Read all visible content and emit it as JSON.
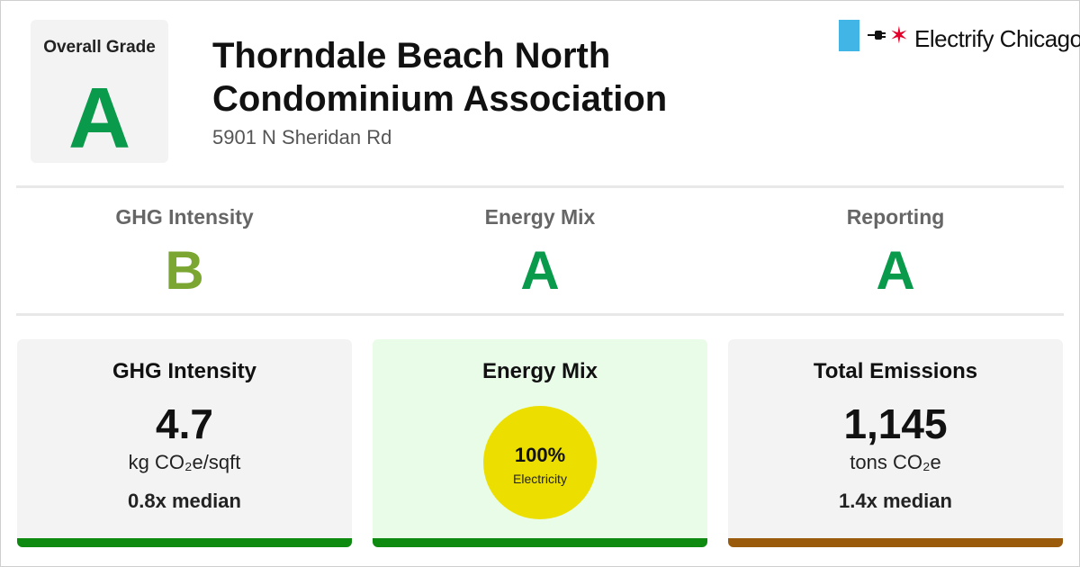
{
  "overall": {
    "label": "Overall Grade",
    "grade": "A",
    "grade_color": "#0a9a4b"
  },
  "building": {
    "name_line1": "Thorndale Beach North",
    "name_line2": "Condominium Association",
    "address": "5901 N Sheridan Rd"
  },
  "brand": {
    "name": "Electrify Chicago",
    "flag_color": "#41b6e6",
    "star_color": "#e4002b",
    "icon": "plug-icon"
  },
  "grades": [
    {
      "label": "GHG Intensity",
      "grade": "B",
      "color": "#7aa631"
    },
    {
      "label": "Energy Mix",
      "grade": "A",
      "color": "#0a9a4b"
    },
    {
      "label": "Reporting",
      "grade": "A",
      "color": "#0a9a4b"
    }
  ],
  "cards": {
    "ghg": {
      "title": "GHG Intensity",
      "value": "4.7",
      "unit": "kg CO₂e/sqft",
      "median": "0.8x median",
      "bg": "#f3f3f3",
      "bar_color": "#0e8a10"
    },
    "mix": {
      "title": "Energy Mix",
      "percent": "100%",
      "source": "Electricity",
      "bg": "#e8fce8",
      "bar_color": "#0e8a10",
      "circle_color": "#ecdf00"
    },
    "total": {
      "title": "Total Emissions",
      "value": "1,145",
      "unit": "tons CO₂e",
      "median": "1.4x median",
      "bg": "#f3f3f3",
      "bar_color": "#9a5b0c"
    }
  }
}
